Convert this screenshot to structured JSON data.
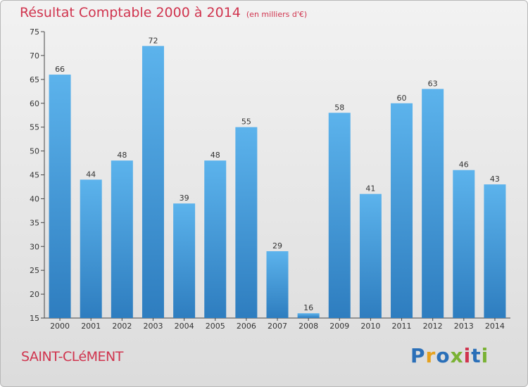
{
  "header": {
    "title": "Résultat Comptable 2000 à 2014",
    "subtitle": "(en milliers d'€)"
  },
  "footer": {
    "city": "SAINT-CLéMENT",
    "logo": "Proxiti"
  },
  "colors": {
    "bar_light": "#5cb3ec",
    "bar_dark": "#2e7dbf",
    "title": "#d0344e",
    "logo_letters": [
      "#2a6fb8",
      "#e5a11f",
      "#2a6fb8",
      "#7ab234",
      "#d0344e",
      "#2a6fb8",
      "#7ab234"
    ]
  },
  "chart_data": {
    "type": "bar",
    "categories": [
      "2000",
      "2001",
      "2002",
      "2003",
      "2004",
      "2005",
      "2006",
      "2007",
      "2008",
      "2009",
      "2010",
      "2011",
      "2012",
      "2013",
      "2014"
    ],
    "values": [
      66,
      44,
      48,
      72,
      39,
      48,
      55,
      29,
      16,
      58,
      41,
      60,
      63,
      46,
      43
    ],
    "ylim": [
      15,
      75
    ],
    "yticks": [
      15,
      20,
      25,
      30,
      35,
      40,
      45,
      50,
      55,
      60,
      65,
      70,
      75
    ],
    "grid": false,
    "data_labels": true
  }
}
